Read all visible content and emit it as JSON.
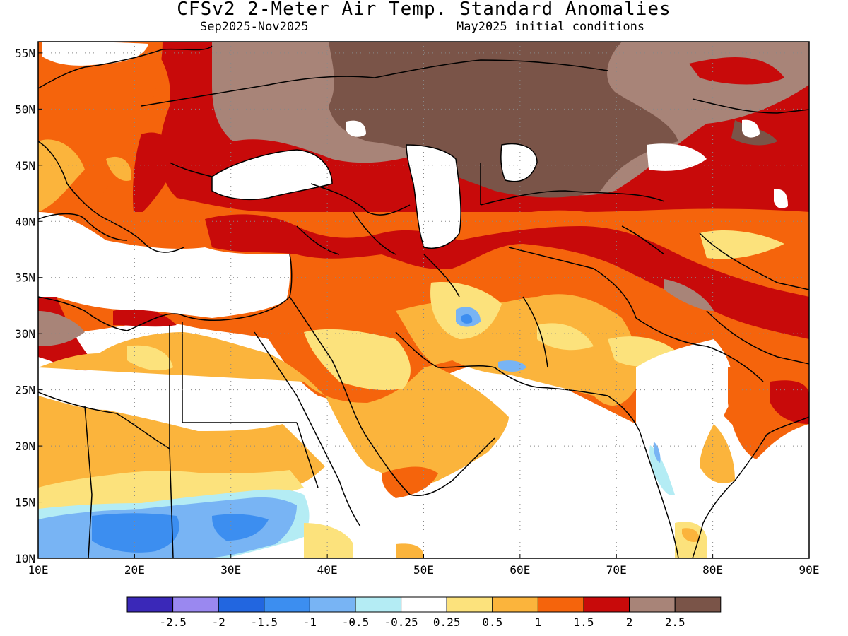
{
  "header": {
    "title": "CFSv2 2-Meter Air Temp. Standard Anomalies",
    "period": "Sep2025-Nov2025",
    "init": "May2025 initial conditions"
  },
  "map": {
    "lon_range": [
      10,
      90
    ],
    "lat_range": [
      10,
      56
    ],
    "lon_ticks": [
      {
        "value": 10,
        "label": "10E"
      },
      {
        "value": 20,
        "label": "20E"
      },
      {
        "value": 30,
        "label": "30E"
      },
      {
        "value": 40,
        "label": "40E"
      },
      {
        "value": 50,
        "label": "50E"
      },
      {
        "value": 60,
        "label": "60E"
      },
      {
        "value": 70,
        "label": "70E"
      },
      {
        "value": 80,
        "label": "80E"
      },
      {
        "value": 90,
        "label": "90E"
      }
    ],
    "lat_ticks": [
      {
        "value": 10,
        "label": "10N"
      },
      {
        "value": 15,
        "label": "15N"
      },
      {
        "value": 20,
        "label": "20N"
      },
      {
        "value": 25,
        "label": "25N"
      },
      {
        "value": 30,
        "label": "30N"
      },
      {
        "value": 35,
        "label": "35N"
      },
      {
        "value": 40,
        "label": "40N"
      },
      {
        "value": 45,
        "label": "45N"
      },
      {
        "value": 50,
        "label": "50N"
      },
      {
        "value": 55,
        "label": "55N"
      }
    ],
    "grid": "dotted",
    "field": "standardized 2m temperature anomaly"
  },
  "colorbar": {
    "colors": [
      "#3a28b8",
      "#9a88f0",
      "#2266e0",
      "#3c8ef0",
      "#78b4f4",
      "#b4ecf4",
      "#ffffff",
      "#fce27c",
      "#fbb43c",
      "#f5640c",
      "#c80a0a",
      "#a88478",
      "#7a5448"
    ],
    "labels": [
      "-2.5",
      "-2",
      "-1.5",
      "-1",
      "-0.5",
      "-0.25",
      "0.25",
      "0.5",
      "1",
      "1.5",
      "2",
      "2.5"
    ]
  }
}
